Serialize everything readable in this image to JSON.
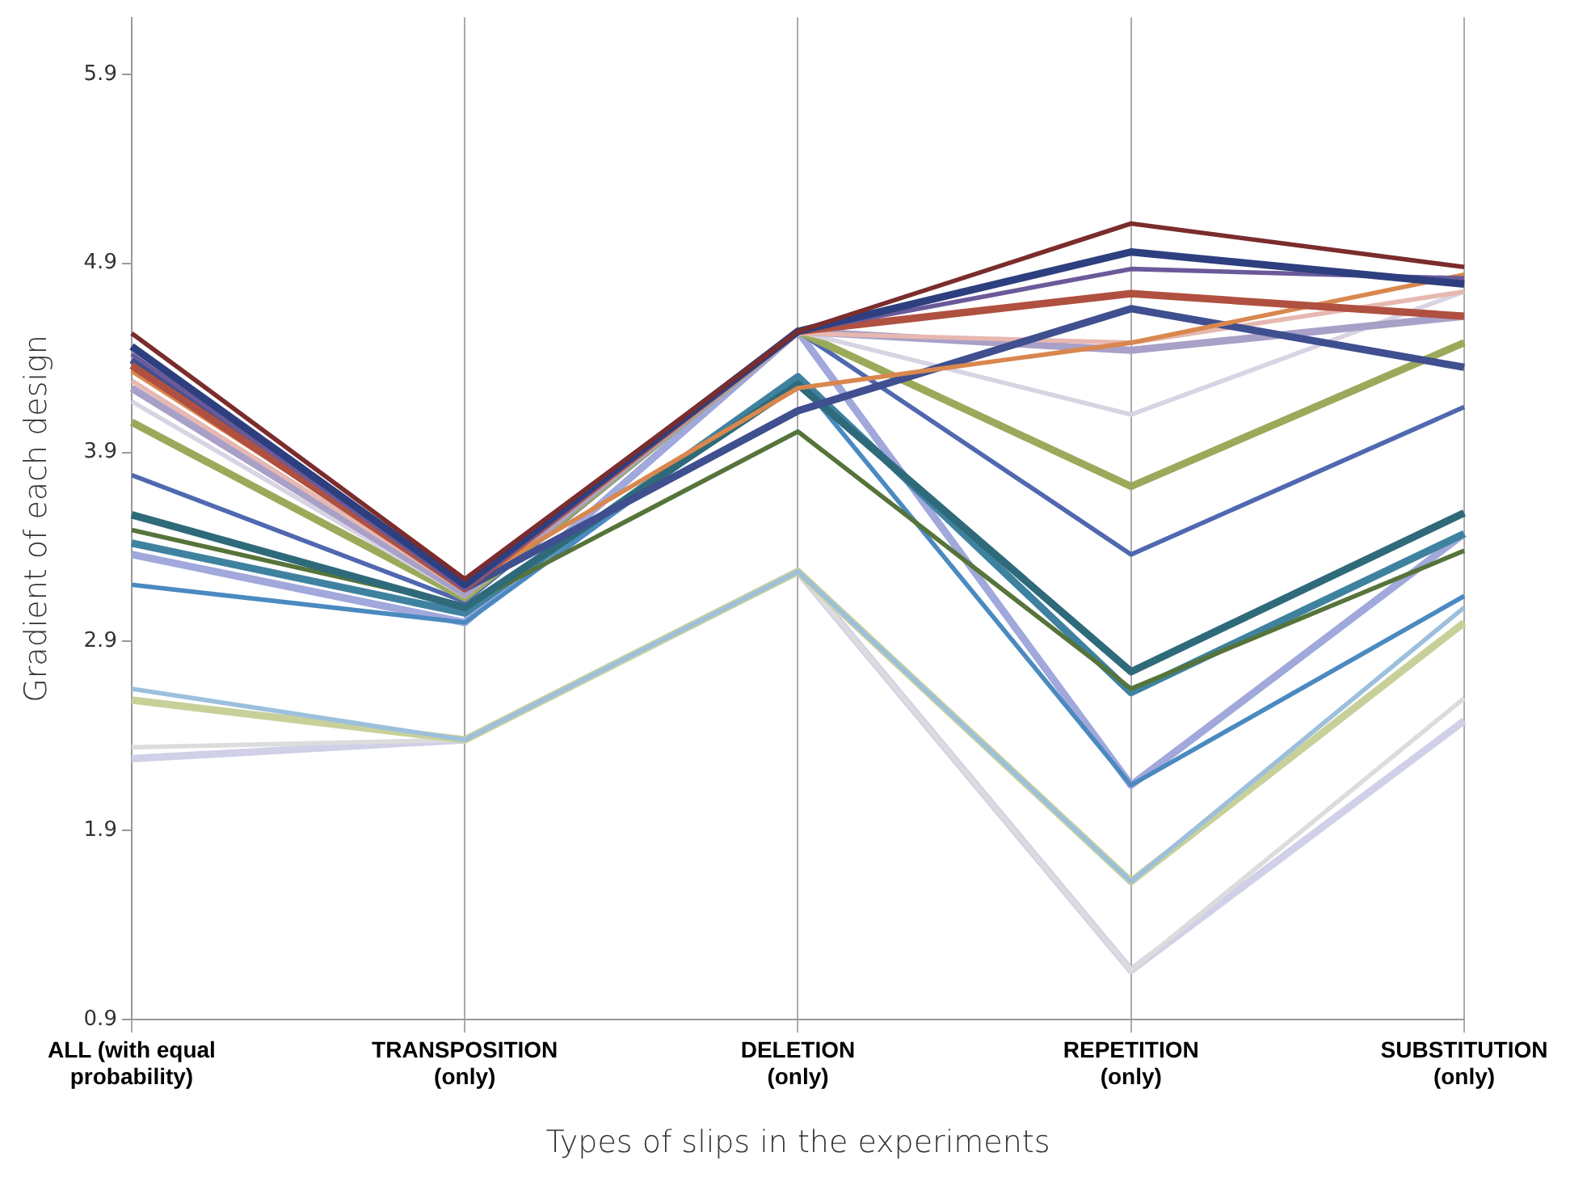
{
  "chart_data": {
    "type": "line",
    "xlabel": "Types of slips in the experiments",
    "ylabel": "Gradient of each design",
    "categories": [
      "ALL (with equal probability)",
      "TRANSPOSITION (only)",
      "DELETION (only)",
      "REPETITION (only)",
      "SUBSTITUTION (only)"
    ],
    "ylim": [
      0.9,
      6.2
    ],
    "yticks": [
      0.9,
      1.9,
      2.9,
      3.9,
      4.9,
      5.9
    ],
    "grid": "x",
    "legend": false,
    "marker": "none",
    "line_style": "solid",
    "series": [
      {
        "color": "#7b2c2c",
        "values": [
          4.53,
          3.23,
          4.54,
          5.11,
          4.88
        ]
      },
      {
        "color": "#2e3f7f",
        "values": [
          4.46,
          3.2,
          4.54,
          4.96,
          4.79
        ]
      },
      {
        "color": "#6a5a9a",
        "values": [
          4.42,
          3.18,
          4.54,
          4.87,
          4.82
        ]
      },
      {
        "color": "#b05040",
        "values": [
          4.36,
          3.18,
          4.54,
          4.74,
          4.62
        ]
      },
      {
        "color": "#d9874e",
        "values": [
          4.33,
          3.2,
          4.24,
          4.48,
          4.84
        ]
      },
      {
        "color": "#3f4f8f",
        "values": [
          4.39,
          3.18,
          4.12,
          4.66,
          4.35
        ]
      },
      {
        "color": "#e6b8b0",
        "values": [
          4.28,
          3.17,
          4.53,
          4.48,
          4.75
        ]
      },
      {
        "color": "#a9a0c8",
        "values": [
          4.24,
          3.15,
          4.54,
          4.44,
          4.62
        ]
      },
      {
        "color": "#d8d4e4",
        "values": [
          4.17,
          3.14,
          4.54,
          4.1,
          4.75
        ]
      },
      {
        "color": "#9aaa5a",
        "values": [
          4.06,
          3.13,
          4.54,
          3.72,
          4.48
        ]
      },
      {
        "color": "#4f68b0",
        "values": [
          3.78,
          3.11,
          4.54,
          3.36,
          4.14
        ]
      },
      {
        "color": "#2f6a7a",
        "values": [
          3.57,
          3.08,
          4.26,
          2.74,
          3.58
        ]
      },
      {
        "color": "#56743a",
        "values": [
          3.49,
          3.09,
          4.01,
          2.65,
          3.38
        ]
      },
      {
        "color": "#3f82a0",
        "values": [
          3.42,
          3.05,
          4.3,
          2.63,
          3.47
        ]
      },
      {
        "color": "#4a8ac0",
        "values": [
          3.2,
          3.0,
          4.29,
          2.14,
          3.14
        ]
      },
      {
        "color": "#a0a8dc",
        "values": [
          3.36,
          3.0,
          4.54,
          2.14,
          3.47
        ]
      },
      {
        "color": "#9cc0dc",
        "values": [
          2.65,
          2.38,
          3.27,
          1.63,
          3.08
        ]
      },
      {
        "color": "#c8d09a",
        "values": [
          2.59,
          2.38,
          3.27,
          1.63,
          3.0
        ]
      },
      {
        "color": "#dcdcdc",
        "values": [
          2.34,
          2.38,
          3.27,
          1.16,
          2.6
        ]
      },
      {
        "color": "#d0d0e8",
        "values": [
          2.28,
          2.38,
          3.27,
          1.16,
          2.48
        ]
      }
    ]
  }
}
